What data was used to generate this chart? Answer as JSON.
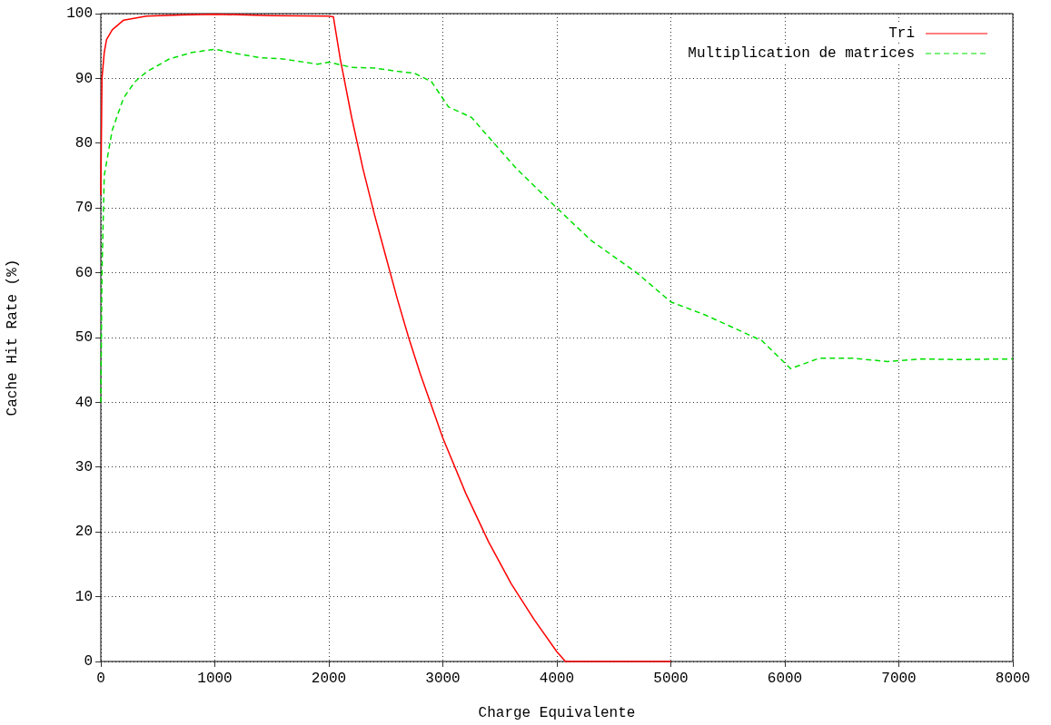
{
  "chart_data": {
    "type": "line",
    "xlabel": "Charge Equivalente",
    "ylabel": "Cache Hit Rate (%)",
    "xlim": [
      0,
      8000
    ],
    "xticks": [
      0,
      1000,
      2000,
      3000,
      4000,
      5000,
      6000,
      7000,
      8000
    ],
    "ylim": [
      0,
      100
    ],
    "yticks": [
      0,
      10,
      20,
      30,
      40,
      50,
      60,
      70,
      80,
      90,
      100
    ],
    "grid": true,
    "legend": "top right",
    "marker": "none",
    "series": [
      {
        "name": "Tri",
        "color": "#ff0000",
        "line_style": "solid",
        "x": [
          0,
          10,
          30,
          50,
          100,
          200,
          400,
          700,
          1000,
          1500,
          2000,
          2040,
          2100,
          2200,
          2300,
          2400,
          2500,
          2600,
          2700,
          2800,
          2900,
          3000,
          3200,
          3400,
          3600,
          3800,
          4000,
          4076,
          4500,
          5000
        ],
        "values": [
          72,
          90,
          94,
          96,
          97.5,
          99,
          99.6,
          99.8,
          99.9,
          99.7,
          99.6,
          99.5,
          93,
          84,
          76,
          69,
          62.5,
          56,
          50,
          44.5,
          39.5,
          34.5,
          26,
          18.5,
          12,
          6.5,
          1.5,
          0,
          0,
          0
        ]
      },
      {
        "name": "Multiplication de matrices",
        "color": "#00e000",
        "line_style": "dashed",
        "x": [
          0,
          10,
          30,
          100,
          200,
          300,
          400,
          600,
          800,
          1000,
          1200,
          1400,
          1600,
          1900,
          2000,
          2200,
          2400,
          2600,
          2750,
          2900,
          3050,
          3250,
          3400,
          3650,
          4000,
          4300,
          4700,
          5000,
          5300,
          5800,
          6050,
          6300,
          6600,
          6900,
          7200,
          7500,
          8000
        ],
        "values": [
          40,
          60,
          75,
          82,
          87,
          89.5,
          91,
          93,
          94,
          94.5,
          93.8,
          93.2,
          93,
          92.2,
          92.5,
          91.7,
          91.6,
          91.1,
          90.8,
          89.5,
          85.6,
          84,
          81,
          76,
          70,
          65,
          60,
          55.5,
          53.5,
          49.5,
          45.2,
          46.8,
          46.8,
          46.3,
          46.7,
          46.6,
          46.7
        ]
      }
    ]
  }
}
